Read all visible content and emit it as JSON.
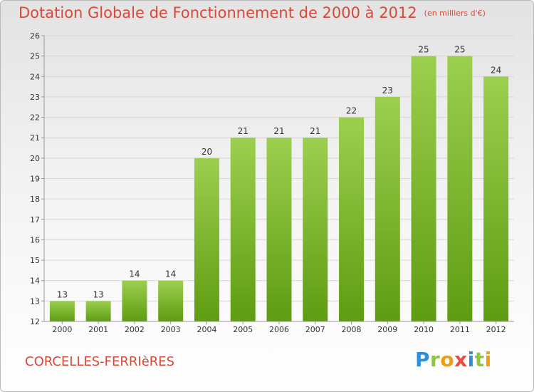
{
  "page": {
    "title": "Dotation Globale de Fonctionnement de 2000 à 2012",
    "subtitle": "(en milliers d'€)",
    "commune": "CORCELLES-FERRIèRES",
    "logo": "Proxiti"
  },
  "colors": {
    "title": "#d64a3a",
    "bar_top": "#9ccf4f",
    "bar_bottom": "#5e9c12"
  },
  "chart_data": {
    "type": "bar",
    "title": "Dotation Globale de Fonctionnement de 2000 à 2012",
    "subtitle": "(en milliers d'€)",
    "categories": [
      "2000",
      "2001",
      "2002",
      "2003",
      "2004",
      "2005",
      "2006",
      "2007",
      "2008",
      "2009",
      "2010",
      "2011",
      "2012"
    ],
    "values": [
      13,
      13,
      14,
      14,
      20,
      21,
      21,
      21,
      22,
      23,
      25,
      25,
      24
    ],
    "data_labels": [
      "13",
      "13",
      "14",
      "14",
      "20",
      "21",
      "21",
      "21",
      "22",
      "23",
      "25",
      "25",
      "24"
    ],
    "ylim": [
      12,
      26
    ],
    "yticks": [
      "12",
      "13",
      "14",
      "15",
      "16",
      "17",
      "18",
      "19",
      "20",
      "21",
      "22",
      "23",
      "24",
      "25",
      "26"
    ],
    "xlabel": "",
    "ylabel": "",
    "grid": true
  }
}
